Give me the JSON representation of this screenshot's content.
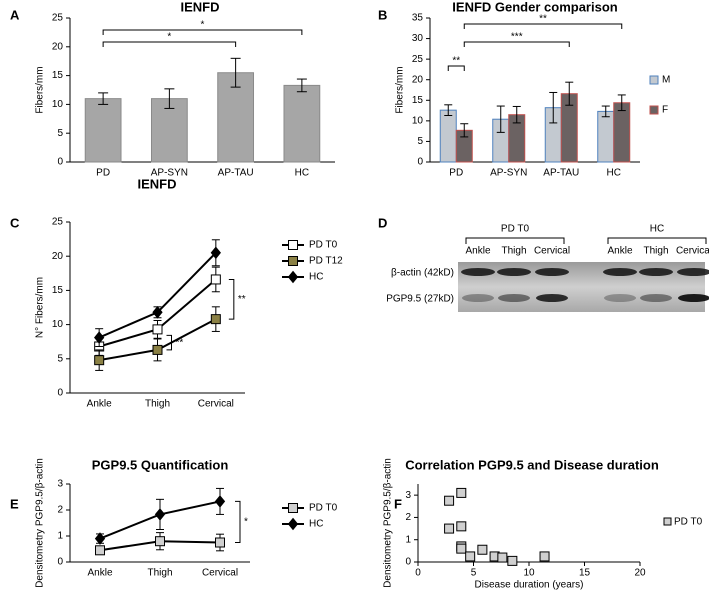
{
  "chart_data": [
    {
      "type": "bar",
      "panel": "A",
      "title": "IENFD",
      "ylabel": "Fibers/mm",
      "categories": [
        "PD",
        "AP-SYN",
        "AP-TAU",
        "HC"
      ],
      "values": [
        11,
        11,
        15.5,
        13.3
      ],
      "errors": [
        1,
        1.7,
        2.5,
        1.1
      ],
      "color": "#a6a6a6",
      "ylim": [
        0,
        25
      ],
      "yticks": [
        0,
        5,
        10,
        15,
        20,
        25
      ],
      "annotations": [
        "*",
        "*"
      ]
    },
    {
      "type": "grouped_bar",
      "panel": "B",
      "title": "IENFD Gender comparison",
      "ylabel": "Fibers/mm",
      "categories": [
        "PD",
        "AP-SYN",
        "AP-TAU",
        "HC"
      ],
      "series": [
        {
          "name": "M",
          "color": "#c3c9d0",
          "edgecolor": "#4f81bd",
          "values": [
            12.6,
            10.4,
            13.2,
            12.3
          ],
          "errors": [
            1.3,
            3.2,
            3.7,
            1.3
          ]
        },
        {
          "name": "F",
          "color": "#6b6262",
          "edgecolor": "#c0504d",
          "values": [
            7.7,
            11.5,
            16.6,
            14.4
          ],
          "errors": [
            1.6,
            2,
            2.8,
            1.9
          ]
        }
      ],
      "ylim": [
        0,
        35
      ],
      "yticks": [
        0,
        5,
        10,
        15,
        20,
        25,
        30,
        35
      ],
      "annotations": [
        "**",
        "***",
        "**"
      ]
    },
    {
      "type": "line",
      "panel": "C",
      "title": "IENFD",
      "ylabel": "N° Fibers/mm",
      "categories": [
        "Ankle",
        "Thigh",
        "Cervical"
      ],
      "series": [
        {
          "name": "PD T0",
          "color": "#000000",
          "marker": "square",
          "markerfill": "#ffffff",
          "values": [
            6.8,
            9.3,
            16.6
          ],
          "errors": [
            1.3,
            1.3,
            1.8
          ]
        },
        {
          "name": "PD T12",
          "color": "#000000",
          "marker": "square",
          "markerfill": "#8b8145",
          "values": [
            4.8,
            6.3,
            10.8
          ],
          "errors": [
            1.5,
            1.6,
            1.8
          ]
        },
        {
          "name": "HC",
          "color": "#000000",
          "marker": "diamond",
          "markerfill": "#000000",
          "values": [
            8.1,
            11.8,
            20.5
          ],
          "errors": [
            1.3,
            0.8,
            1.9
          ]
        }
      ],
      "ylim": [
        0,
        25
      ],
      "yticks": [
        0,
        5,
        10,
        15,
        20,
        25
      ],
      "annotations": [
        "**",
        "**"
      ]
    },
    {
      "type": "blot",
      "panel": "D",
      "groups": [
        {
          "name": "PD T0",
          "lanes": [
            "Ankle",
            "Thigh",
            "Cervical"
          ]
        },
        {
          "name": "HC",
          "lanes": [
            "Ankle",
            "Thigh",
            "Cervical"
          ]
        }
      ],
      "bands": [
        "β-actin (42kD)",
        "PGP9.5 (27kD)"
      ]
    },
    {
      "type": "line",
      "panel": "E",
      "title": "PGP9.5 Quantification",
      "ylabel": "Densitometry PGP9.5/β-actin",
      "categories": [
        "Ankle",
        "Thigh",
        "Cervical"
      ],
      "series": [
        {
          "name": "PD T0",
          "color": "#000000",
          "marker": "square",
          "markerfill": "#d0d0d0",
          "values": [
            0.45,
            0.8,
            0.75
          ],
          "errors": [
            0.15,
            0.33,
            0.32
          ]
        },
        {
          "name": "HC",
          "color": "#000000",
          "marker": "diamond",
          "markerfill": "#000000",
          "values": [
            0.9,
            1.83,
            2.33
          ],
          "errors": [
            0.18,
            0.58,
            0.5
          ]
        }
      ],
      "ylim": [
        0,
        3
      ],
      "yticks": [
        0,
        1,
        2,
        3
      ],
      "annotations": [
        "*"
      ]
    },
    {
      "type": "scatter",
      "panel": "F",
      "title": "Correlation PGP9.5 and Disease duration",
      "xlabel": "Disease duration (years)",
      "ylabel": "Densitometry PGP9.5/β-actin",
      "series": [
        {
          "name": "PD T0",
          "color": "#d0d0d0",
          "x": [
            2.8,
            2.8,
            3.9,
            3.9,
            3.9,
            3.9,
            4.7,
            5.8,
            6.9,
            7.6,
            8.5,
            11.4
          ],
          "values": [
            2.75,
            1.5,
            3.1,
            1.6,
            0.7,
            0.6,
            0.25,
            0.55,
            0.25,
            0.2,
            0.05,
            0.25
          ]
        }
      ],
      "xlim": [
        0,
        20
      ],
      "xticks": [
        0,
        5,
        10,
        15,
        20
      ],
      "ylim": [
        0,
        3.5
      ],
      "yticks": [
        0,
        1,
        2,
        3
      ]
    }
  ]
}
